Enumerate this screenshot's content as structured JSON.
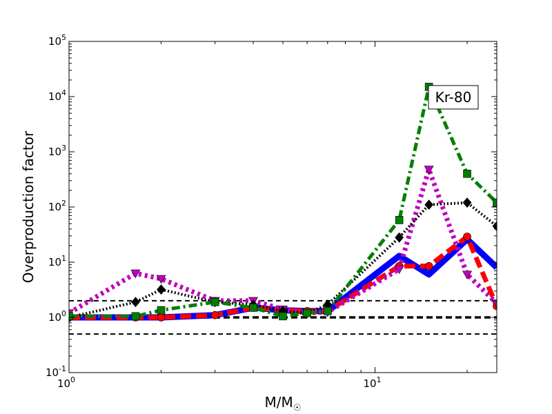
{
  "chart_data": {
    "type": "line",
    "x_scale": "log",
    "y_scale": "log",
    "xlim": [
      1,
      25
    ],
    "ylim": [
      0.1,
      100000
    ],
    "xlabel": "M/M",
    "xlabel_sub": "☉",
    "ylabel": "Overproduction factor",
    "annotation": "Kr-80",
    "x_ticks": [
      {
        "value": 1,
        "base": "10",
        "exp": "0"
      },
      {
        "value": 10,
        "base": "10",
        "exp": "1"
      }
    ],
    "y_ticks": [
      {
        "value": 0.1,
        "base": "10",
        "exp": "-1"
      },
      {
        "value": 1,
        "base": "10",
        "exp": "0"
      },
      {
        "value": 10,
        "base": "10",
        "exp": "1"
      },
      {
        "value": 100,
        "base": "10",
        "exp": "2"
      },
      {
        "value": 1000,
        "base": "10",
        "exp": "3"
      },
      {
        "value": 10000,
        "base": "10",
        "exp": "4"
      },
      {
        "value": 100000,
        "base": "10",
        "exp": "5"
      }
    ],
    "reference_lines": [
      {
        "y": 0.5,
        "style": "thin-dashed"
      },
      {
        "y": 1,
        "style": "thick-dashed"
      },
      {
        "y": 2,
        "style": "thin-dashed"
      }
    ],
    "series": [
      {
        "color": "#0000ff",
        "dash": "solid",
        "width": 9,
        "marker": "none",
        "x": [
          1,
          1.65,
          2,
          3,
          4,
          5,
          6,
          7,
          12,
          15,
          20,
          25
        ],
        "y": [
          1.0,
          1.0,
          1.0,
          1.1,
          1.5,
          1.35,
          1.3,
          1.3,
          13,
          6,
          26,
          8
        ]
      },
      {
        "color": "#ff0000",
        "dash": "dashed",
        "width": 7,
        "marker": "circle",
        "x": [
          1,
          1.65,
          2,
          3,
          4,
          5,
          6,
          7,
          12,
          15,
          20,
          25
        ],
        "y": [
          1.0,
          1.0,
          1.0,
          1.1,
          1.5,
          1.35,
          1.3,
          1.3,
          8.5,
          8.5,
          29,
          1.6
        ]
      },
      {
        "color": "#bf00bf",
        "dash": "dotted",
        "width": 7,
        "marker": "triangle-down",
        "x": [
          1,
          1.65,
          2,
          3,
          4,
          5,
          6,
          7,
          12,
          15,
          20,
          25
        ],
        "y": [
          1.2,
          6.3,
          5.0,
          2.0,
          2.0,
          1.4,
          1.2,
          1.25,
          7.5,
          480,
          6,
          1.8
        ]
      },
      {
        "color": "#000000",
        "dash": "dotted",
        "width": 4,
        "marker": "diamond",
        "x": [
          1,
          1.65,
          2,
          3,
          4,
          5,
          6,
          7,
          12,
          15,
          20,
          25
        ],
        "y": [
          1.0,
          1.9,
          3.2,
          1.9,
          1.7,
          1.3,
          1.2,
          1.7,
          28,
          110,
          120,
          45
        ]
      },
      {
        "color": "#007f00",
        "dash": "dash-dot",
        "width": 5,
        "marker": "square",
        "x": [
          1,
          1.65,
          2,
          3,
          4,
          5,
          6,
          7,
          12,
          15,
          20,
          25
        ],
        "y": [
          1.05,
          1.05,
          1.35,
          1.9,
          1.5,
          1.05,
          1.2,
          1.3,
          58,
          15000,
          400,
          120
        ]
      }
    ]
  }
}
